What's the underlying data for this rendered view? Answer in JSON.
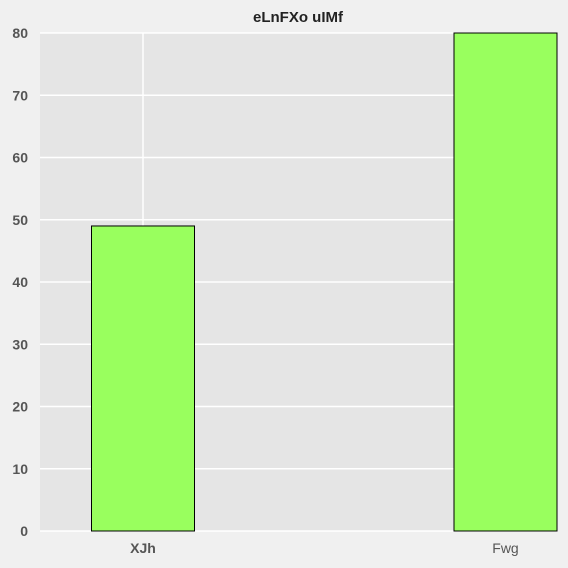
{
  "chart_data": {
    "type": "bar",
    "title": "eLnFXo uIMf",
    "xlabel": "",
    "ylabel": "",
    "categories": [
      "XJh",
      "Fwg"
    ],
    "category_label_styles": [
      "bold",
      "normal"
    ],
    "values": [
      49,
      80
    ],
    "ylim": [
      0,
      80
    ],
    "yticks": [
      "0",
      "10",
      "20",
      "30",
      "40",
      "50",
      "60",
      "70",
      "80"
    ],
    "grid": true,
    "colors": {
      "bar_fill": "#99ff5e",
      "bar_edge": "#000000",
      "plot_background": "#e5e5e5",
      "figure_background": "#f0f0f0",
      "grid": "#ffffff"
    }
  }
}
